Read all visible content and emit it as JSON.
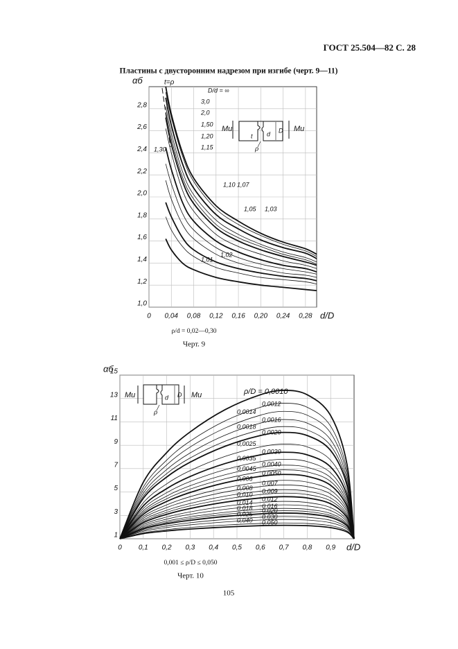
{
  "header": {
    "standard": "ГОСТ 25.504—82 С. 28",
    "title": "Пластины с двусторонним надрезом при изгибе (черт. 9—11)"
  },
  "chart_data": [
    {
      "type": "line",
      "y_label": "αб",
      "x_label": "d/D",
      "xlim": [
        0,
        0.3
      ],
      "ylim": [
        1.0,
        3.0
      ],
      "xticks": [
        0,
        {
          "value": 0.04,
          "label": "0,04"
        },
        {
          "value": 0.08,
          "label": "0,08"
        },
        {
          "value": 0.12,
          "label": "0,12"
        },
        {
          "value": 0.16,
          "label": "0,16"
        },
        {
          "value": 0.2,
          "label": "0,20"
        },
        {
          "value": 0.24,
          "label": "0,24"
        },
        {
          "value": 0.28,
          "label": "0,28"
        }
      ],
      "yticks": [
        {
          "value": 1.0,
          "label": "1,0"
        },
        {
          "value": 1.2,
          "label": "1,2"
        },
        {
          "value": 1.4,
          "label": "1,4"
        },
        {
          "value": 1.6,
          "label": "1,6"
        },
        {
          "value": 1.8,
          "label": "1,8"
        },
        {
          "value": 2.0,
          "label": "2,0"
        },
        {
          "value": 2.2,
          "label": "2,2"
        },
        {
          "value": 2.4,
          "label": "2,4"
        },
        {
          "value": 2.6,
          "label": "2,6"
        },
        {
          "value": 2.8,
          "label": "2,8"
        }
      ],
      "grid": true,
      "annotations": [
        "t=ρ"
      ],
      "sketch_labels": [
        "Mи",
        "Mи",
        "t",
        "d",
        "D",
        "ρ"
      ],
      "x": [
        0.03,
        0.04,
        0.06,
        0.08,
        0.12,
        0.16,
        0.2,
        0.24,
        0.28,
        0.3
      ],
      "series": [
        {
          "name": "D/d = ∞",
          "color": "#111",
          "values": [
            3.0,
            2.75,
            2.4,
            2.17,
            1.92,
            1.78,
            1.67,
            1.59,
            1.53,
            1.48
          ]
        },
        {
          "name": "3,0",
          "color": "#111",
          "values": [
            2.95,
            2.72,
            2.37,
            2.14,
            1.89,
            1.75,
            1.65,
            1.57,
            1.51,
            1.46
          ]
        },
        {
          "name": "2,0",
          "color": "#111",
          "values": [
            2.9,
            2.65,
            2.3,
            2.08,
            1.84,
            1.71,
            1.61,
            1.54,
            1.49,
            1.44
          ]
        },
        {
          "name": "1,50",
          "color": "#111",
          "values": [
            2.82,
            2.58,
            2.23,
            2.02,
            1.79,
            1.66,
            1.57,
            1.5,
            1.45,
            1.41
          ]
        },
        {
          "name": "1,30",
          "color": "#111",
          "values": [
            2.77,
            2.53,
            2.18,
            1.98,
            1.75,
            1.63,
            1.55,
            1.48,
            1.43,
            1.39
          ]
        },
        {
          "name": "1,20",
          "color": "#111",
          "values": [
            2.72,
            2.48,
            2.14,
            1.94,
            1.72,
            1.6,
            1.52,
            1.46,
            1.41,
            1.38
          ]
        },
        {
          "name": "1,15",
          "color": "#111",
          "values": [
            2.62,
            2.4,
            2.06,
            1.87,
            1.66,
            1.55,
            1.48,
            1.42,
            1.38,
            1.35
          ]
        },
        {
          "name": "1,10",
          "color": "#111",
          "values": [
            2.45,
            2.25,
            1.95,
            1.78,
            1.6,
            1.5,
            1.43,
            1.38,
            1.35,
            1.32
          ]
        },
        {
          "name": "1,07",
          "color": "#111",
          "values": [
            2.3,
            2.12,
            1.85,
            1.7,
            1.54,
            1.45,
            1.39,
            1.35,
            1.32,
            1.3
          ]
        },
        {
          "name": "1,05",
          "color": "#111",
          "values": [
            2.15,
            1.98,
            1.75,
            1.62,
            1.48,
            1.4,
            1.35,
            1.31,
            1.29,
            1.27
          ]
        },
        {
          "name": "1,03",
          "color": "#111",
          "values": [
            1.95,
            1.82,
            1.63,
            1.52,
            1.41,
            1.35,
            1.31,
            1.28,
            1.26,
            1.24
          ]
        },
        {
          "name": "1,02",
          "color": "#111",
          "values": [
            1.82,
            1.7,
            1.55,
            1.46,
            1.36,
            1.31,
            1.27,
            1.25,
            1.23,
            1.21
          ]
        },
        {
          "name": "1,01",
          "color": "#111",
          "values": [
            1.62,
            1.52,
            1.4,
            1.34,
            1.27,
            1.23,
            1.2,
            1.18,
            1.16,
            1.15
          ]
        }
      ],
      "caption": "ρ/d = 0,02—0,30",
      "figure": "Черт. 9"
    },
    {
      "type": "line",
      "y_label": "αб",
      "x_label": "d/D",
      "xlim": [
        0,
        1
      ],
      "ylim": [
        1,
        15
      ],
      "xticks": [
        0,
        {
          "value": 0.1,
          "label": "0,1"
        },
        {
          "value": 0.2,
          "label": "0,2"
        },
        {
          "value": 0.3,
          "label": "0,3"
        },
        {
          "value": 0.4,
          "label": "0,4"
        },
        {
          "value": 0.5,
          "label": "0,5"
        },
        {
          "value": 0.6,
          "label": "0,6"
        },
        {
          "value": 0.7,
          "label": "0,7"
        },
        {
          "value": 0.8,
          "label": "0,8"
        },
        {
          "value": 0.9,
          "label": "0,9"
        }
      ],
      "yticks": [
        1,
        3,
        5,
        7,
        9,
        11,
        13,
        15
      ],
      "grid": true,
      "annotations": [],
      "sketch_labels": [
        "Mи",
        "Mи",
        "d",
        "D",
        "ρ"
      ],
      "x": [
        0,
        0.1,
        0.2,
        0.3,
        0.45,
        0.6,
        0.7,
        0.8,
        0.9,
        0.97,
        1.0
      ],
      "series": [
        {
          "name": "ρ/D = 0,0010",
          "color": "#111",
          "values": [
            1,
            5.83,
            8.37,
            10.14,
            12.05,
            13.32,
            13.7,
            13.32,
            11.54,
            7.35,
            1
          ]
        },
        {
          "name": "0,0012",
          "color": "#111",
          "values": [
            1,
            5.41,
            7.73,
            9.35,
            11.09,
            12.25,
            12.6,
            12.25,
            10.63,
            6.8,
            1
          ]
        },
        {
          "name": "0,0014",
          "color": "#111",
          "values": [
            1,
            5.14,
            7.32,
            8.85,
            10.48,
            11.57,
            11.9,
            11.57,
            10.05,
            6.45,
            1
          ]
        },
        {
          "name": "0,0016",
          "color": "#111",
          "values": [
            1,
            4.88,
            6.92,
            8.34,
            9.87,
            10.89,
            11.2,
            10.89,
            9.47,
            6.1,
            1
          ]
        },
        {
          "name": "0,0018",
          "color": "#111",
          "values": [
            1,
            4.65,
            6.57,
            7.91,
            9.35,
            10.31,
            10.6,
            10.31,
            8.97,
            5.8,
            1
          ]
        },
        {
          "name": "0,0020",
          "color": "#111",
          "values": [
            1,
            4.46,
            6.28,
            7.55,
            8.92,
            9.83,
            10.1,
            9.83,
            8.55,
            5.55,
            1
          ]
        },
        {
          "name": "0,0025",
          "color": "#111",
          "values": [
            1,
            4.08,
            5.7,
            6.83,
            8.05,
            8.86,
            9.1,
            8.86,
            7.72,
            5.05,
            1
          ]
        },
        {
          "name": "0,0030",
          "color": "#111",
          "values": [
            1,
            3.81,
            5.29,
            6.33,
            7.44,
            8.18,
            8.4,
            8.18,
            7.14,
            4.7,
            1
          ]
        },
        {
          "name": "0,0035",
          "color": "#111",
          "values": [
            1,
            3.58,
            4.94,
            5.9,
            6.92,
            7.6,
            7.8,
            7.6,
            6.64,
            4.4,
            1
          ]
        },
        {
          "name": "0,0040",
          "color": "#111",
          "values": [
            1,
            3.39,
            4.65,
            5.54,
            6.48,
            7.11,
            7.3,
            7.11,
            6.23,
            4.15,
            1
          ]
        },
        {
          "name": "0,0045",
          "color": "#111",
          "values": [
            1,
            3.24,
            4.42,
            5.25,
            6.13,
            6.72,
            6.9,
            6.72,
            5.9,
            3.95,
            1
          ]
        },
        {
          "name": "0,0050",
          "color": "#111",
          "values": [
            1,
            3.09,
            4.19,
            4.96,
            5.79,
            6.34,
            6.5,
            6.34,
            5.57,
            3.75,
            1
          ]
        },
        {
          "name": "0,006",
          "color": "#111",
          "values": [
            1,
            2.9,
            3.9,
            4.6,
            5.35,
            5.85,
            6,
            5.85,
            5.15,
            3.5,
            1
          ]
        },
        {
          "name": "0,007",
          "color": "#111",
          "values": [
            1,
            2.75,
            3.67,
            4.31,
            5,
            5.46,
            5.6,
            5.46,
            4.82,
            3.3,
            1
          ]
        },
        {
          "name": "0,008",
          "color": "#111",
          "values": [
            1,
            2.6,
            3.44,
            4.02,
            4.65,
            5.07,
            5.2,
            5.07,
            4.49,
            3.1,
            1
          ]
        },
        {
          "name": "0,009",
          "color": "#111",
          "values": [
            1,
            2.48,
            3.26,
            3.81,
            4.39,
            4.78,
            4.9,
            4.78,
            4.24,
            2.95,
            1
          ]
        },
        {
          "name": "0,010",
          "color": "#111",
          "values": [
            1,
            2.37,
            3.09,
            3.59,
            4.13,
            4.49,
            4.6,
            4.49,
            3.99,
            2.8,
            1
          ]
        },
        {
          "name": "0,012",
          "color": "#111",
          "values": [
            1,
            2.22,
            2.86,
            3.3,
            3.78,
            4.1,
            4.2,
            4.1,
            3.66,
            2.6,
            1
          ]
        },
        {
          "name": "0,014",
          "color": "#111",
          "values": [
            1,
            2.1,
            2.68,
            3.09,
            3.52,
            3.81,
            3.9,
            3.81,
            3.41,
            2.45,
            1
          ]
        },
        {
          "name": "0,016",
          "color": "#111",
          "values": [
            1,
            1.99,
            2.51,
            2.87,
            3.26,
            3.52,
            3.6,
            3.52,
            3.16,
            2.3,
            1
          ]
        },
        {
          "name": "0,018",
          "color": "#111",
          "values": [
            1,
            1.91,
            2.39,
            2.73,
            3.09,
            3.33,
            3.4,
            3.33,
            2.99,
            2.2,
            1
          ]
        },
        {
          "name": "0,020",
          "color": "#111",
          "values": [
            1,
            1.84,
            2.28,
            2.58,
            2.91,
            3.13,
            3.2,
            3.13,
            2.83,
            2.1,
            1
          ]
        },
        {
          "name": "0,025",
          "color": "#111",
          "values": [
            1,
            1.72,
            2.1,
            2.37,
            2.65,
            2.84,
            2.9,
            2.84,
            2.58,
            1.95,
            1
          ]
        },
        {
          "name": "0,030",
          "color": "#111",
          "values": [
            1,
            1.63,
            1.96,
            2.19,
            2.44,
            2.6,
            2.65,
            2.6,
            2.37,
            1.83,
            1
          ]
        },
        {
          "name": "0,040",
          "color": "#111",
          "values": [
            1,
            1.51,
            1.78,
            1.97,
            2.17,
            2.31,
            2.35,
            2.31,
            2.12,
            1.68,
            1
          ]
        },
        {
          "name": "0,050",
          "color": "#111",
          "values": [
            1,
            1.44,
            1.67,
            1.83,
            2,
            2.12,
            2.15,
            2.12,
            1.95,
            1.58,
            1
          ]
        }
      ],
      "caption": "0,001 ≤ ρ/D ≤ 0,050",
      "figure": "Черт. 10"
    }
  ],
  "page_number": "105"
}
